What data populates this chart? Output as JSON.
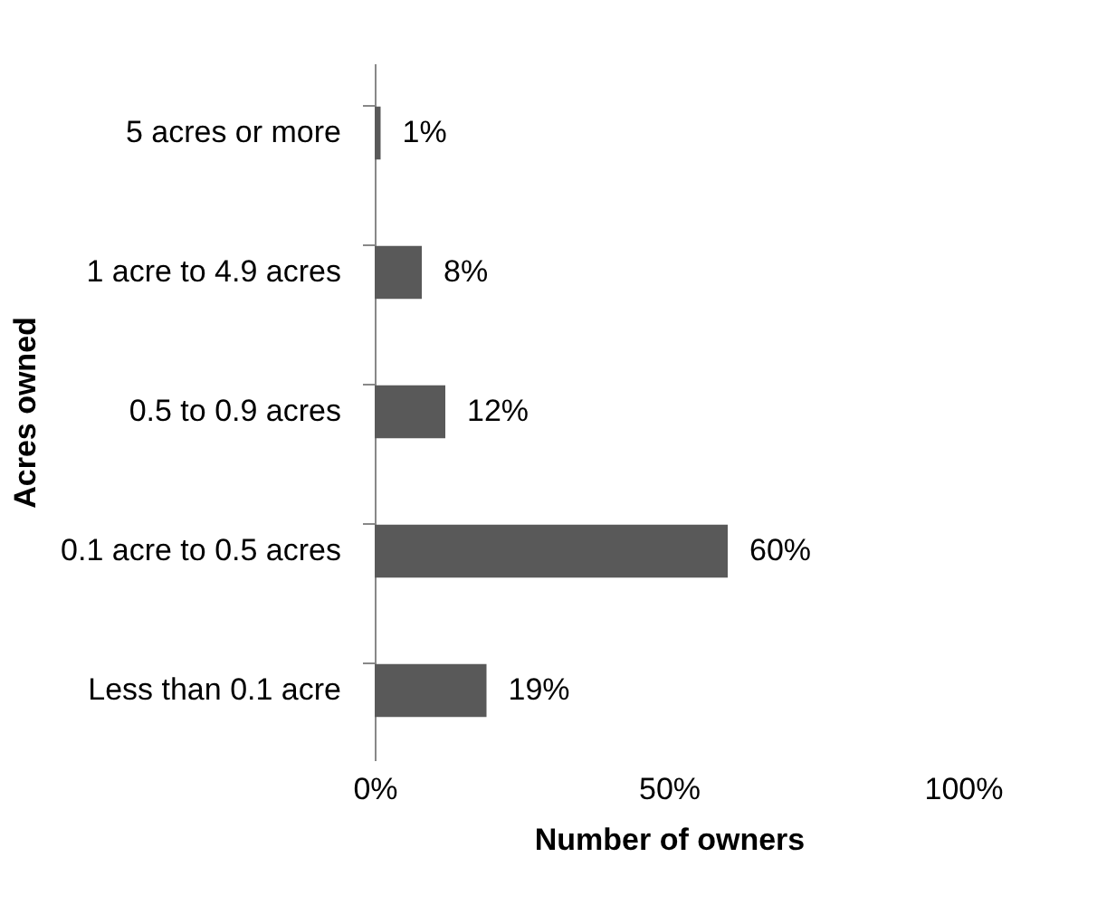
{
  "chart_data": {
    "type": "bar",
    "orientation": "horizontal",
    "xlabel": "Number of owners",
    "ylabel": "Acres owned",
    "categories": [
      "5 acres or more",
      "1 acre to 4.9 acres",
      "0.5 to 0.9 acres",
      "0.1 acre to 0.5 acres",
      "Less than 0.1 acre"
    ],
    "values": [
      1,
      8,
      12,
      60,
      19
    ],
    "color": "#595959",
    "value_labels": [
      "1%",
      "8%",
      "12%",
      "60%",
      "19%"
    ],
    "xlim": [
      0,
      100
    ],
    "xticks": [
      {
        "value": 0,
        "label": "0%"
      },
      {
        "value": 50,
        "label": "50%"
      },
      {
        "value": 100,
        "label": "100%"
      }
    ],
    "grid": false
  }
}
